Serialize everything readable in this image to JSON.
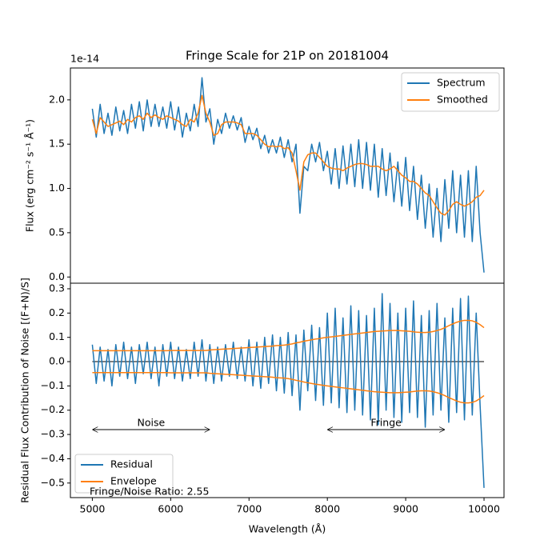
{
  "chart_data": [
    {
      "type": "line",
      "title": "Fringe Scale for 21P on 20181004",
      "y_label": "Flux (erg cm⁻² s⁻¹ Å⁻¹)",
      "offset_label": "1e-14",
      "xlim": [
        4720,
        10255
      ],
      "ylim": [
        -0.07,
        2.36
      ],
      "yticks": [
        {
          "value": 0,
          "label": "0.0"
        },
        0.5,
        {
          "value": 1,
          "label": "1.0"
        },
        1.5,
        {
          "value": 2,
          "label": "2.0"
        }
      ],
      "legend": "upper right",
      "x": [
        5000,
        5050,
        5100,
        5150,
        5200,
        5250,
        5300,
        5350,
        5400,
        5450,
        5500,
        5550,
        5600,
        5650,
        5700,
        5750,
        5800,
        5850,
        5900,
        5950,
        6000,
        6050,
        6100,
        6150,
        6200,
        6250,
        6300,
        6350,
        6400,
        6450,
        6500,
        6550,
        6600,
        6650,
        6700,
        6750,
        6800,
        6850,
        6900,
        6950,
        7000,
        7050,
        7100,
        7150,
        7200,
        7250,
        7300,
        7350,
        7400,
        7450,
        7500,
        7550,
        7600,
        7650,
        7700,
        7750,
        7800,
        7850,
        7900,
        7950,
        8000,
        8050,
        8100,
        8150,
        8200,
        8250,
        8300,
        8350,
        8400,
        8450,
        8500,
        8550,
        8600,
        8650,
        8700,
        8750,
        8800,
        8850,
        8900,
        8950,
        9000,
        9050,
        9100,
        9150,
        9200,
        9250,
        9300,
        9350,
        9400,
        9450,
        9500,
        9550,
        9600,
        9650,
        9700,
        9750,
        9800,
        9850,
        9900,
        9950,
        10000
      ],
      "series": [
        {
          "name": "Spectrum",
          "color": "#1f77b4",
          "values": [
            1.9,
            1.58,
            1.95,
            1.62,
            1.85,
            1.6,
            1.92,
            1.65,
            1.88,
            1.62,
            1.95,
            1.68,
            1.98,
            1.65,
            2.0,
            1.7,
            1.95,
            1.7,
            1.92,
            1.68,
            1.98,
            1.66,
            1.92,
            1.58,
            1.85,
            1.65,
            1.95,
            1.7,
            2.25,
            1.75,
            1.9,
            1.5,
            1.78,
            1.62,
            1.85,
            1.68,
            1.82,
            1.66,
            1.8,
            1.52,
            1.7,
            1.55,
            1.68,
            1.45,
            1.6,
            1.4,
            1.55,
            1.4,
            1.58,
            1.35,
            1.55,
            1.3,
            1.5,
            0.72,
            1.25,
            1.2,
            1.5,
            1.3,
            1.52,
            1.2,
            1.42,
            1.05,
            1.45,
            1.0,
            1.48,
            1.05,
            1.5,
            1.02,
            1.55,
            1.0,
            1.52,
            0.98,
            1.5,
            0.9,
            1.45,
            0.92,
            1.4,
            0.85,
            1.3,
            0.8,
            1.35,
            0.75,
            1.25,
            0.65,
            1.15,
            0.55,
            1.05,
            0.45,
            1.0,
            0.4,
            1.1,
            0.55,
            1.2,
            0.5,
            1.15,
            0.45,
            1.2,
            0.4,
            1.25,
            0.5,
            0.05
          ]
        },
        {
          "name": "Smoothed",
          "color": "#ff7f0e",
          "values": [
            1.78,
            1.62,
            1.8,
            1.75,
            1.7,
            1.72,
            1.74,
            1.76,
            1.72,
            1.78,
            1.75,
            1.8,
            1.82,
            1.78,
            1.85,
            1.8,
            1.83,
            1.8,
            1.78,
            1.82,
            1.8,
            1.78,
            1.76,
            1.72,
            1.7,
            1.78,
            1.75,
            1.85,
            2.05,
            1.85,
            1.75,
            1.6,
            1.62,
            1.72,
            1.75,
            1.75,
            1.75,
            1.74,
            1.72,
            1.62,
            1.62,
            1.62,
            1.6,
            1.55,
            1.5,
            1.47,
            1.48,
            1.47,
            1.48,
            1.45,
            1.46,
            1.4,
            1.2,
            0.98,
            1.3,
            1.38,
            1.4,
            1.4,
            1.35,
            1.3,
            1.25,
            1.23,
            1.22,
            1.22,
            1.2,
            1.23,
            1.25,
            1.27,
            1.28,
            1.28,
            1.27,
            1.25,
            1.25,
            1.25,
            1.22,
            1.2,
            1.22,
            1.25,
            1.2,
            1.15,
            1.12,
            1.08,
            1.08,
            1.05,
            1.0,
            0.95,
            0.92,
            0.85,
            0.78,
            0.72,
            0.7,
            0.75,
            0.82,
            0.85,
            0.82,
            0.8,
            0.82,
            0.85,
            0.9,
            0.92,
            0.98
          ]
        }
      ]
    },
    {
      "type": "line",
      "x_label": "Wavelength (Å)",
      "y_label": "Residual Flux Contribution of Noise [(F+N)/S]",
      "xlim": [
        4720,
        10255
      ],
      "ylim": [
        -0.56,
        0.323
      ],
      "xticks": [
        5000,
        6000,
        7000,
        8000,
        9000,
        10000
      ],
      "yticks": [
        0.3,
        0.2,
        0.1,
        {
          "value": 0,
          "label": "0.0"
        },
        {
          "value": -0.1,
          "label": "−0.1"
        },
        {
          "value": -0.2,
          "label": "−0.2"
        },
        {
          "value": -0.3,
          "label": "−0.3"
        },
        {
          "value": -0.4,
          "label": "−0.4"
        },
        {
          "value": -0.5,
          "label": "−0.5"
        }
      ],
      "legend": "lower left",
      "hline": 0,
      "annotations": [
        {
          "text": "Noise",
          "x": [
            5000,
            6500
          ],
          "y": -0.28
        },
        {
          "text": "Fringe",
          "x": [
            8000,
            9500
          ],
          "y": -0.28
        }
      ],
      "note": "Fringe/Noise Ratio: 2.55",
      "x": [
        5000,
        5050,
        5100,
        5150,
        5200,
        5250,
        5300,
        5350,
        5400,
        5450,
        5500,
        5550,
        5600,
        5650,
        5700,
        5750,
        5800,
        5850,
        5900,
        5950,
        6000,
        6050,
        6100,
        6150,
        6200,
        6250,
        6300,
        6350,
        6400,
        6450,
        6500,
        6550,
        6600,
        6650,
        6700,
        6750,
        6800,
        6850,
        6900,
        6950,
        7000,
        7050,
        7100,
        7150,
        7200,
        7250,
        7300,
        7350,
        7400,
        7450,
        7500,
        7550,
        7600,
        7650,
        7700,
        7750,
        7800,
        7850,
        7900,
        7950,
        8000,
        8050,
        8100,
        8150,
        8200,
        8250,
        8300,
        8350,
        8400,
        8450,
        8500,
        8550,
        8600,
        8650,
        8700,
        8750,
        8800,
        8850,
        8900,
        8950,
        9000,
        9050,
        9100,
        9150,
        9200,
        9250,
        9300,
        9350,
        9400,
        9450,
        9500,
        9550,
        9600,
        9650,
        9700,
        9750,
        9800,
        9850,
        9900,
        9950,
        10000
      ],
      "series": [
        {
          "name": "Residual",
          "color": "#1f77b4",
          "values": [
            0.07,
            -0.09,
            0.06,
            -0.08,
            0.05,
            -0.1,
            0.07,
            -0.06,
            0.08,
            -0.07,
            0.06,
            -0.09,
            0.07,
            -0.05,
            0.08,
            -0.07,
            0.06,
            -0.1,
            0.07,
            -0.06,
            0.08,
            -0.07,
            0.06,
            -0.08,
            0.05,
            -0.07,
            0.08,
            -0.06,
            0.09,
            -0.08,
            0.07,
            -0.09,
            0.06,
            -0.08,
            0.07,
            -0.06,
            0.08,
            -0.07,
            0.06,
            -0.08,
            0.09,
            -0.1,
            0.08,
            -0.11,
            0.1,
            -0.09,
            0.11,
            -0.12,
            0.1,
            -0.13,
            0.12,
            -0.14,
            0.11,
            -0.2,
            0.13,
            -0.12,
            0.15,
            -0.16,
            0.14,
            -0.18,
            0.2,
            -0.17,
            0.22,
            -0.19,
            0.18,
            -0.21,
            0.23,
            -0.2,
            0.21,
            -0.22,
            0.19,
            -0.24,
            0.22,
            -0.26,
            0.28,
            -0.2,
            0.24,
            -0.23,
            0.2,
            -0.25,
            0.22,
            -0.21,
            0.25,
            -0.23,
            0.19,
            -0.27,
            0.21,
            -0.22,
            0.24,
            -0.2,
            0.18,
            -0.25,
            0.22,
            -0.21,
            0.26,
            -0.24,
            0.27,
            -0.22,
            0.2,
            -0.18,
            -0.52
          ]
        },
        {
          "name": "Envelope",
          "color": "#ff7f0e",
          "values": [
            0.045,
            0.045,
            0.045,
            0.045,
            0.045,
            0.045,
            0.045,
            0.045,
            0.045,
            0.045,
            0.045,
            0.045,
            0.045,
            0.045,
            0.045,
            0.045,
            0.045,
            0.045,
            0.045,
            0.045,
            0.046,
            0.046,
            0.046,
            0.046,
            0.046,
            0.046,
            0.046,
            0.046,
            0.046,
            0.046,
            0.048,
            0.049,
            0.05,
            0.051,
            0.052,
            0.053,
            0.054,
            0.055,
            0.056,
            0.057,
            0.058,
            0.059,
            0.06,
            0.061,
            0.062,
            0.063,
            0.064,
            0.066,
            0.067,
            0.068,
            0.07,
            0.073,
            0.077,
            0.08,
            0.084,
            0.087,
            0.09,
            0.093,
            0.095,
            0.098,
            0.1,
            0.102,
            0.104,
            0.106,
            0.108,
            0.11,
            0.112,
            0.114,
            0.116,
            0.118,
            0.12,
            0.122,
            0.124,
            0.125,
            0.126,
            0.127,
            0.128,
            0.128,
            0.128,
            0.127,
            0.126,
            0.125,
            0.123,
            0.121,
            0.12,
            0.12,
            0.121,
            0.124,
            0.128,
            0.133,
            0.14,
            0.148,
            0.155,
            0.162,
            0.167,
            0.17,
            0.17,
            0.168,
            0.162,
            0.152,
            0.14
          ],
          "values_lower": [
            -0.045,
            -0.045,
            -0.045,
            -0.045,
            -0.045,
            -0.045,
            -0.045,
            -0.045,
            -0.045,
            -0.045,
            -0.045,
            -0.045,
            -0.045,
            -0.045,
            -0.045,
            -0.045,
            -0.045,
            -0.045,
            -0.045,
            -0.045,
            -0.046,
            -0.046,
            -0.046,
            -0.046,
            -0.046,
            -0.046,
            -0.046,
            -0.046,
            -0.046,
            -0.046,
            -0.048,
            -0.049,
            -0.05,
            -0.051,
            -0.052,
            -0.053,
            -0.054,
            -0.055,
            -0.056,
            -0.057,
            -0.058,
            -0.059,
            -0.06,
            -0.061,
            -0.062,
            -0.063,
            -0.064,
            -0.066,
            -0.067,
            -0.068,
            -0.07,
            -0.073,
            -0.077,
            -0.08,
            -0.084,
            -0.087,
            -0.09,
            -0.093,
            -0.095,
            -0.098,
            -0.1,
            -0.102,
            -0.104,
            -0.106,
            -0.108,
            -0.11,
            -0.112,
            -0.114,
            -0.116,
            -0.118,
            -0.12,
            -0.122,
            -0.124,
            -0.125,
            -0.126,
            -0.127,
            -0.128,
            -0.128,
            -0.128,
            -0.127,
            -0.126,
            -0.125,
            -0.123,
            -0.121,
            -0.12,
            -0.12,
            -0.121,
            -0.124,
            -0.128,
            -0.133,
            -0.14,
            -0.148,
            -0.155,
            -0.162,
            -0.167,
            -0.17,
            -0.17,
            -0.168,
            -0.162,
            -0.152,
            -0.14
          ]
        }
      ]
    }
  ]
}
